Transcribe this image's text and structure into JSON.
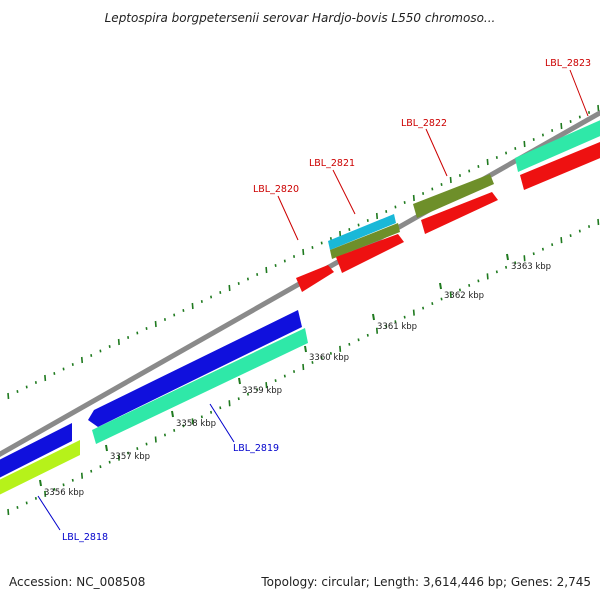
{
  "title": "Leptospira borgpetersenii serovar Hardjo-bovis L550 chromoso...",
  "footer": {
    "accession": "Accession: NC_008508",
    "summary": "Topology: circular; Length: 3,614,446 bp; Genes: 2,745"
  },
  "scale_labels": [
    "3356 kbp",
    "3357 kbp",
    "3358 kbp",
    "3359 kbp",
    "3360 kbp",
    "3361 kbp",
    "3362 kbp",
    "3363 kbp"
  ],
  "gene_labels": [
    {
      "text": "LBL_2818",
      "color": "#0000cc"
    },
    {
      "text": "LBL_2819",
      "color": "#0000cc"
    },
    {
      "text": "LBL_2820",
      "color": "#cc0000"
    },
    {
      "text": "LBL_2821",
      "color": "#cc0000"
    },
    {
      "text": "LBL_2822",
      "color": "#cc0000"
    },
    {
      "text": "LBL_2823",
      "color": "#cc0000"
    }
  ],
  "colors": {
    "backbone": "#8a8a8a",
    "blue": "#1010dd",
    "teal": "#2fe8a8",
    "olive": "#6e8f2a",
    "lime": "#b6f21a",
    "red": "#ee1111",
    "cyan": "#1ab8d8",
    "tick": "#1f7a1f"
  }
}
